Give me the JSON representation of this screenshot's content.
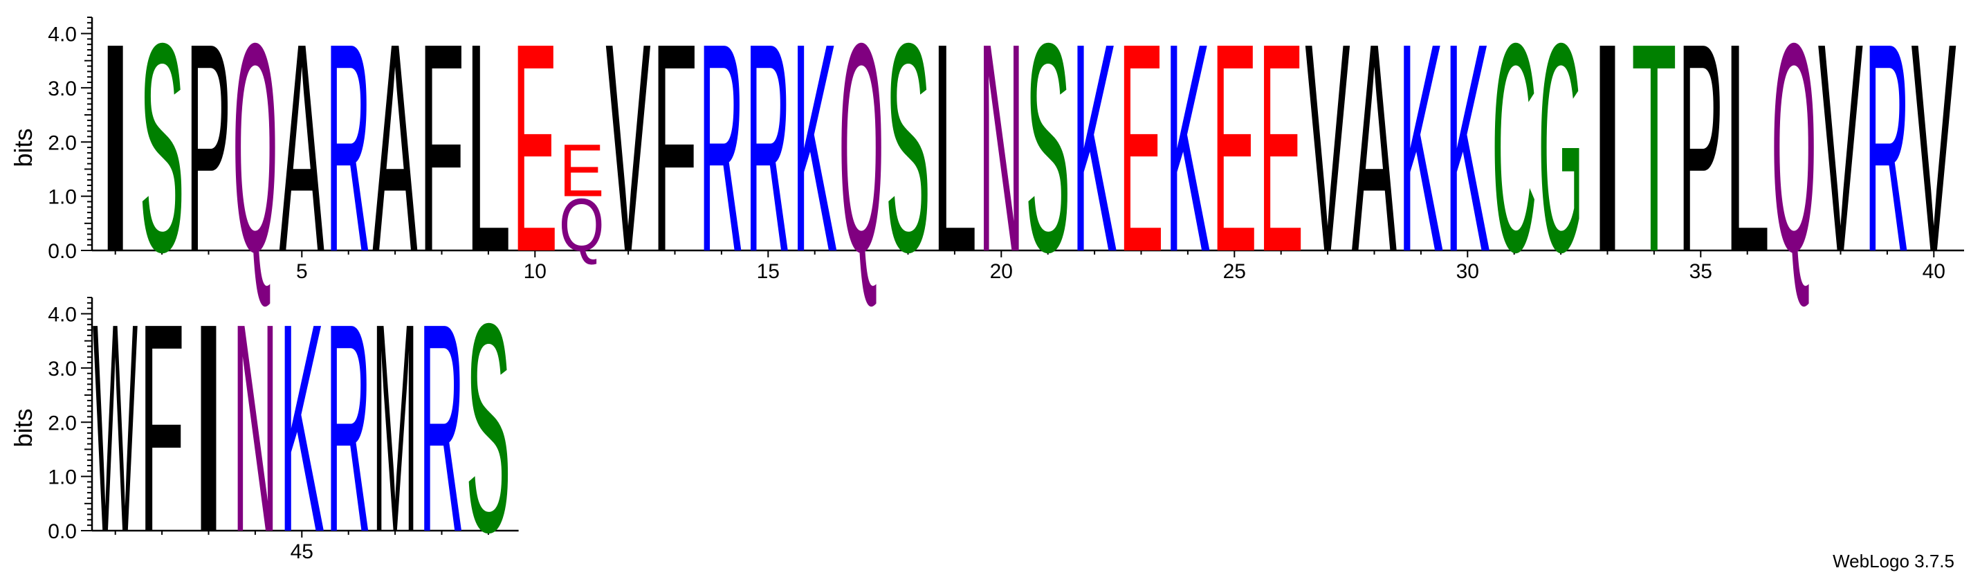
{
  "chart_data": {
    "type": "sequence_logo",
    "ylabel": "bits",
    "ylim": [
      0,
      4.3
    ],
    "yticks": [
      "0.0",
      "1.0",
      "2.0",
      "3.0",
      "4.0"
    ],
    "xtick_labels": [
      "5",
      "10",
      "15",
      "20",
      "25",
      "30",
      "35",
      "40",
      "45"
    ],
    "colors": {
      "A": "#000000",
      "F": "#000000",
      "I": "#000000",
      "L": "#000000",
      "M": "#000000",
      "P": "#000000",
      "V": "#000000",
      "W": "#000000",
      "R": "#0000ff",
      "K": "#0000ff",
      "H": "#0000ff",
      "S": "#008000",
      "T": "#008000",
      "C": "#008000",
      "G": "#008000",
      "Y": "#008000",
      "Q": "#800080",
      "N": "#800080",
      "E": "#ff0000",
      "D": "#ff0000"
    },
    "positions": [
      {
        "pos": 1,
        "letters": [
          {
            "char": "I",
            "bits": 4.0
          }
        ]
      },
      {
        "pos": 2,
        "letters": [
          {
            "char": "S",
            "bits": 4.0
          }
        ]
      },
      {
        "pos": 3,
        "letters": [
          {
            "char": "P",
            "bits": 4.0
          }
        ]
      },
      {
        "pos": 4,
        "letters": [
          {
            "char": "Q",
            "bits": 4.0
          }
        ]
      },
      {
        "pos": 5,
        "letters": [
          {
            "char": "A",
            "bits": 4.0
          }
        ]
      },
      {
        "pos": 6,
        "letters": [
          {
            "char": "R",
            "bits": 4.0
          }
        ]
      },
      {
        "pos": 7,
        "letters": [
          {
            "char": "A",
            "bits": 4.0
          }
        ]
      },
      {
        "pos": 8,
        "letters": [
          {
            "char": "F",
            "bits": 4.0
          }
        ]
      },
      {
        "pos": 9,
        "letters": [
          {
            "char": "L",
            "bits": 4.0
          }
        ]
      },
      {
        "pos": 10,
        "letters": [
          {
            "char": "E",
            "bits": 4.0
          }
        ]
      },
      {
        "pos": 11,
        "letters": [
          {
            "char": "Q",
            "bits": 1.0
          },
          {
            "char": "E",
            "bits": 1.0
          }
        ]
      },
      {
        "pos": 12,
        "letters": [
          {
            "char": "V",
            "bits": 4.0
          }
        ]
      },
      {
        "pos": 13,
        "letters": [
          {
            "char": "F",
            "bits": 4.0
          }
        ]
      },
      {
        "pos": 14,
        "letters": [
          {
            "char": "R",
            "bits": 4.0
          }
        ]
      },
      {
        "pos": 15,
        "letters": [
          {
            "char": "R",
            "bits": 4.0
          }
        ]
      },
      {
        "pos": 16,
        "letters": [
          {
            "char": "K",
            "bits": 4.0
          }
        ]
      },
      {
        "pos": 17,
        "letters": [
          {
            "char": "Q",
            "bits": 4.0
          }
        ]
      },
      {
        "pos": 18,
        "letters": [
          {
            "char": "S",
            "bits": 4.0
          }
        ]
      },
      {
        "pos": 19,
        "letters": [
          {
            "char": "L",
            "bits": 4.0
          }
        ]
      },
      {
        "pos": 20,
        "letters": [
          {
            "char": "N",
            "bits": 4.0
          }
        ]
      },
      {
        "pos": 21,
        "letters": [
          {
            "char": "S",
            "bits": 4.0
          }
        ]
      },
      {
        "pos": 22,
        "letters": [
          {
            "char": "K",
            "bits": 4.0
          }
        ]
      },
      {
        "pos": 23,
        "letters": [
          {
            "char": "E",
            "bits": 4.0
          }
        ]
      },
      {
        "pos": 24,
        "letters": [
          {
            "char": "K",
            "bits": 4.0
          }
        ]
      },
      {
        "pos": 25,
        "letters": [
          {
            "char": "E",
            "bits": 4.0
          }
        ]
      },
      {
        "pos": 26,
        "letters": [
          {
            "char": "E",
            "bits": 4.0
          }
        ]
      },
      {
        "pos": 27,
        "letters": [
          {
            "char": "V",
            "bits": 4.0
          }
        ]
      },
      {
        "pos": 28,
        "letters": [
          {
            "char": "A",
            "bits": 4.0
          }
        ]
      },
      {
        "pos": 29,
        "letters": [
          {
            "char": "K",
            "bits": 4.0
          }
        ]
      },
      {
        "pos": 30,
        "letters": [
          {
            "char": "K",
            "bits": 4.0
          }
        ]
      },
      {
        "pos": 31,
        "letters": [
          {
            "char": "C",
            "bits": 4.0
          }
        ]
      },
      {
        "pos": 32,
        "letters": [
          {
            "char": "G",
            "bits": 4.0
          }
        ]
      },
      {
        "pos": 33,
        "letters": [
          {
            "char": "I",
            "bits": 4.0
          }
        ]
      },
      {
        "pos": 34,
        "letters": [
          {
            "char": "T",
            "bits": 4.0
          }
        ]
      },
      {
        "pos": 35,
        "letters": [
          {
            "char": "P",
            "bits": 4.0
          }
        ]
      },
      {
        "pos": 36,
        "letters": [
          {
            "char": "L",
            "bits": 4.0
          }
        ]
      },
      {
        "pos": 37,
        "letters": [
          {
            "char": "Q",
            "bits": 4.0
          }
        ]
      },
      {
        "pos": 38,
        "letters": [
          {
            "char": "V",
            "bits": 4.0
          }
        ]
      },
      {
        "pos": 39,
        "letters": [
          {
            "char": "R",
            "bits": 4.0
          }
        ]
      },
      {
        "pos": 40,
        "letters": [
          {
            "char": "V",
            "bits": 4.0
          }
        ]
      },
      {
        "pos": 41,
        "letters": [
          {
            "char": "W",
            "bits": 4.0
          }
        ]
      },
      {
        "pos": 42,
        "letters": [
          {
            "char": "F",
            "bits": 4.0
          }
        ]
      },
      {
        "pos": 43,
        "letters": [
          {
            "char": "I",
            "bits": 4.0
          }
        ]
      },
      {
        "pos": 44,
        "letters": [
          {
            "char": "N",
            "bits": 4.0
          }
        ]
      },
      {
        "pos": 45,
        "letters": [
          {
            "char": "K",
            "bits": 4.0
          }
        ]
      },
      {
        "pos": 46,
        "letters": [
          {
            "char": "R",
            "bits": 4.0
          }
        ]
      },
      {
        "pos": 47,
        "letters": [
          {
            "char": "M",
            "bits": 4.0
          }
        ]
      },
      {
        "pos": 48,
        "letters": [
          {
            "char": "R",
            "bits": 4.0
          }
        ]
      },
      {
        "pos": 49,
        "letters": [
          {
            "char": "S",
            "bits": 4.0
          }
        ]
      }
    ]
  },
  "footer": "WebLogo 3.7.5"
}
